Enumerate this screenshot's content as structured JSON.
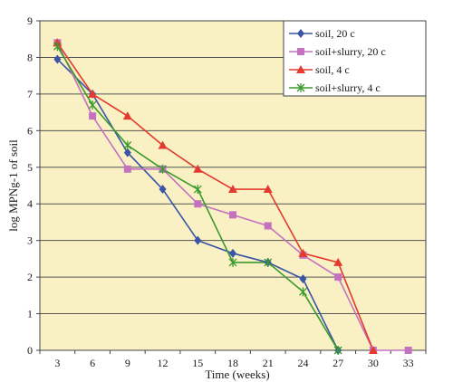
{
  "chart_data": {
    "type": "line",
    "title": "",
    "xlabel": "Time (weeks)",
    "ylabel": "log MPNg-1 of soil",
    "x": [
      3,
      6,
      9,
      12,
      15,
      18,
      21,
      24,
      27,
      30,
      33
    ],
    "xlim": [
      3,
      33
    ],
    "ylim": [
      0,
      9
    ],
    "y_ticks": [
      0,
      1,
      2,
      3,
      4,
      5,
      6,
      7,
      8,
      9
    ],
    "grid": "horizontal",
    "legend_position": "top-right",
    "plot_background": "#f9f0c4",
    "series": [
      {
        "name": "soil, 20 c",
        "color": "#3a55a6",
        "marker": "diamond",
        "points": [
          [
            3,
            7.95
          ],
          [
            6,
            7.0
          ],
          [
            9,
            5.4
          ],
          [
            12,
            4.4
          ],
          [
            15,
            3.0
          ],
          [
            18,
            2.65
          ],
          [
            21,
            2.4
          ],
          [
            24,
            1.95
          ],
          [
            27,
            0
          ]
        ]
      },
      {
        "name": "soil+slurry, 20 c",
        "color": "#c472c0",
        "marker": "square",
        "points": [
          [
            3,
            8.4
          ],
          [
            6,
            6.4
          ],
          [
            9,
            4.95
          ],
          [
            12,
            4.95
          ],
          [
            15,
            4.0
          ],
          [
            18,
            3.7
          ],
          [
            21,
            3.4
          ],
          [
            24,
            2.6
          ],
          [
            27,
            2.0
          ],
          [
            30,
            0
          ],
          [
            33,
            0
          ]
        ]
      },
      {
        "name": "soil, 4 c",
        "color": "#e23a2e",
        "marker": "triangle",
        "points": [
          [
            3,
            8.4
          ],
          [
            6,
            7.0
          ],
          [
            9,
            6.4
          ],
          [
            12,
            5.6
          ],
          [
            15,
            4.95
          ],
          [
            18,
            4.4
          ],
          [
            21,
            4.4
          ],
          [
            24,
            2.65
          ],
          [
            27,
            2.4
          ],
          [
            30,
            0
          ]
        ]
      },
      {
        "name": "soil+slurry, 4 c",
        "color": "#3a9a2c",
        "marker": "star",
        "points": [
          [
            3,
            8.3
          ],
          [
            6,
            6.7
          ],
          [
            9,
            5.6
          ],
          [
            12,
            4.95
          ],
          [
            15,
            4.4
          ],
          [
            18,
            2.4
          ],
          [
            21,
            2.4
          ],
          [
            24,
            1.6
          ],
          [
            27,
            0
          ]
        ]
      }
    ]
  }
}
